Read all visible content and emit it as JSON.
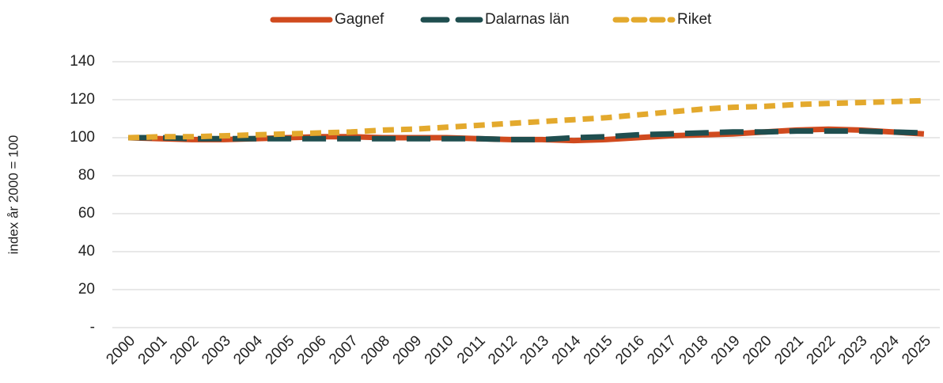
{
  "chart_data": {
    "type": "line",
    "y_label": "index år 2000 = 100",
    "categories": [
      "2000",
      "2001",
      "2002",
      "2003",
      "2004",
      "2005",
      "2006",
      "2007",
      "2008",
      "2009",
      "2010",
      "2011",
      "2012",
      "2013",
      "2014",
      "2015",
      "2016",
      "2017",
      "2018",
      "2019",
      "2020",
      "2021",
      "2022",
      "2023",
      "2024",
      "2025"
    ],
    "series": [
      {
        "name": "Gagnef",
        "color": "#d04a1e",
        "style": "solid",
        "values": [
          100,
          99.5,
          99,
          99,
          99.5,
          100,
          100.5,
          100.5,
          100,
          100,
          100,
          99.5,
          99,
          99,
          98.5,
          99,
          100,
          101,
          101.5,
          102,
          103,
          104,
          104.5,
          104,
          103,
          102
        ]
      },
      {
        "name": "Dalarnas län",
        "color": "#1f4e4f",
        "style": "longdash",
        "values": [
          100,
          100,
          99.5,
          99.5,
          99.5,
          99.5,
          99.5,
          99.5,
          99.5,
          99.5,
          99.5,
          99.5,
          99,
          99,
          100,
          100.5,
          101.5,
          102,
          102.5,
          103,
          103,
          103.5,
          103.5,
          103.5,
          103,
          102.5
        ]
      },
      {
        "name": "Riket",
        "color": "#e3a92d",
        "style": "dash",
        "values": [
          100,
          100.5,
          100.5,
          101,
          101.5,
          102,
          102.5,
          103,
          104,
          104.5,
          105.5,
          106.5,
          107.5,
          108.5,
          109.5,
          110.5,
          112,
          113.5,
          115,
          116,
          116.5,
          117.5,
          118,
          118.5,
          119,
          119.5
        ]
      }
    ],
    "ylim": [
      0,
      140
    ],
    "yticks": [
      {
        "value": 0,
        "label": "-"
      },
      20,
      40,
      60,
      80,
      100,
      120,
      140
    ],
    "grid": true,
    "legend": "top"
  }
}
